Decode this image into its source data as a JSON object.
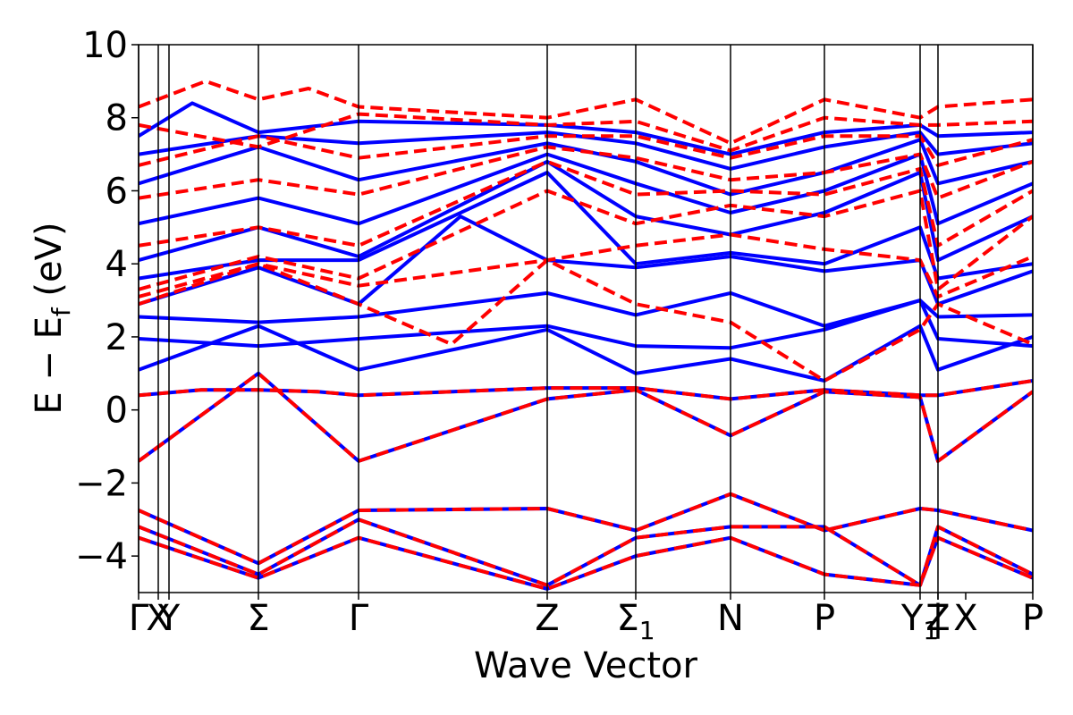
{
  "chart_data": {
    "type": "line",
    "title": "",
    "xlabel": "Wave Vector",
    "ylabel": "E − E_f (eV)",
    "ylabel_parts": {
      "main": "E − E",
      "sub": "f",
      "unit": " (eV)"
    },
    "ylim": [
      -5,
      10
    ],
    "xlim": [
      0,
      10
    ],
    "yticks": [
      -4,
      -2,
      0,
      2,
      4,
      6,
      8,
      10
    ],
    "ytick_labels": [
      "−4",
      "−2",
      "0",
      "2",
      "4",
      "6",
      "8",
      "10"
    ],
    "kpoints": [
      {
        "label": "Γ",
        "sub": "",
        "x": 0.0
      },
      {
        "label": "X",
        "sub": "",
        "x": 0.22
      },
      {
        "label": "Y",
        "sub": "",
        "x": 0.34
      },
      {
        "label": "Σ",
        "sub": "",
        "x": 1.34
      },
      {
        "label": "Γ",
        "sub": "",
        "x": 2.46
      },
      {
        "label": "Z",
        "sub": "",
        "x": 4.57
      },
      {
        "label": "Σ",
        "sub": "1",
        "x": 5.56
      },
      {
        "label": "N",
        "sub": "",
        "x": 6.62
      },
      {
        "label": "P",
        "sub": "",
        "x": 7.67
      },
      {
        "label": "Y",
        "sub": "1",
        "x": 8.74
      },
      {
        "label": "Z",
        "sub": "",
        "x": 8.94
      },
      {
        "label": "|",
        "sub": "",
        "x": 8.94
      },
      {
        "label": "X",
        "sub": "",
        "x": 9.25
      },
      {
        "label": "P",
        "sub": "",
        "x": 10.0
      }
    ],
    "vlines": [
      0.0,
      0.22,
      0.34,
      1.34,
      2.46,
      4.57,
      5.56,
      6.62,
      7.67,
      8.74,
      8.94,
      10.0
    ],
    "series": [
      {
        "color": "#0000ff",
        "style": "solid",
        "width": 4,
        "role": "band",
        "bands": [
          {
            "x": [
              0,
              1.34,
              2.46,
              4.57,
              5.56,
              6.62,
              7.67,
              8.74,
              8.94,
              10
            ],
            "y": [
              -1.4,
              1.0,
              -1.4,
              0.3,
              0.55,
              -0.7,
              0.5,
              0.35,
              -1.4,
              0.5
            ]
          },
          {
            "x": [
              0,
              0.7,
              1.34,
              2.0,
              2.46,
              4.57,
              5.56,
              6.62,
              7.67,
              8.74,
              8.94,
              10
            ],
            "y": [
              0.4,
              0.55,
              0.55,
              0.5,
              0.4,
              0.6,
              0.6,
              0.3,
              0.55,
              0.4,
              0.4,
              0.8
            ]
          },
          {
            "x": [
              0,
              1.34,
              2.46,
              4.57,
              5.56,
              6.62,
              7.67,
              8.74,
              8.94,
              10
            ],
            "y": [
              1.1,
              2.3,
              1.1,
              2.2,
              1.0,
              1.4,
              0.8,
              2.3,
              1.1,
              2.0
            ]
          },
          {
            "x": [
              0,
              1.34,
              2.46,
              4.57,
              5.56,
              6.62,
              7.67,
              8.74,
              8.94,
              10
            ],
            "y": [
              1.95,
              1.75,
              1.95,
              2.3,
              1.75,
              1.7,
              2.2,
              3.0,
              1.95,
              1.75
            ]
          },
          {
            "x": [
              0,
              1.34,
              2.46,
              4.57,
              5.56,
              6.62,
              7.67,
              8.74,
              8.94,
              10
            ],
            "y": [
              2.55,
              2.4,
              2.55,
              3.2,
              2.6,
              3.2,
              2.3,
              3.0,
              2.55,
              2.6
            ]
          },
          {
            "x": [
              0,
              1.34,
              2.46,
              3.6,
              4.57,
              5.56,
              6.62,
              7.67,
              8.74,
              8.94,
              10
            ],
            "y": [
              2.9,
              3.9,
              2.9,
              5.3,
              4.1,
              3.9,
              4.2,
              3.8,
              4.1,
              2.9,
              3.8
            ]
          },
          {
            "x": [
              0,
              1.34,
              2.46,
              4.57,
              5.56,
              6.62,
              7.67,
              8.74,
              8.94,
              10
            ],
            "y": [
              3.6,
              4.1,
              4.1,
              6.5,
              4.0,
              4.3,
              4.0,
              5.0,
              3.6,
              4.0
            ]
          },
          {
            "x": [
              0,
              1.34,
              2.46,
              4.57,
              5.56,
              6.62,
              7.67,
              8.74,
              8.94,
              10
            ],
            "y": [
              4.1,
              5.0,
              4.2,
              6.8,
              5.3,
              4.8,
              5.4,
              6.5,
              4.1,
              5.3
            ]
          },
          {
            "x": [
              0,
              1.34,
              2.46,
              4.57,
              5.56,
              6.62,
              7.67,
              8.74,
              8.94,
              10
            ],
            "y": [
              5.1,
              5.8,
              5.1,
              7.0,
              6.2,
              5.4,
              6.0,
              7.0,
              5.1,
              6.2
            ]
          },
          {
            "x": [
              0,
              1.34,
              2.46,
              4.57,
              5.56,
              6.62,
              7.67,
              8.74,
              8.94,
              10
            ],
            "y": [
              6.2,
              7.2,
              6.3,
              7.3,
              6.8,
              5.9,
              6.5,
              7.4,
              6.2,
              6.8
            ]
          },
          {
            "x": [
              0,
              1.34,
              2.46,
              4.57,
              5.56,
              6.62,
              7.67,
              8.74,
              8.94,
              10
            ],
            "y": [
              7.0,
              7.5,
              7.3,
              7.6,
              7.3,
              6.6,
              7.2,
              7.6,
              7.0,
              7.3
            ]
          },
          {
            "x": [
              0,
              0.6,
              1.34,
              2.46,
              4.57,
              5.56,
              6.62,
              7.67,
              8.74,
              8.94,
              10
            ],
            "y": [
              7.5,
              8.4,
              7.6,
              7.9,
              7.8,
              7.6,
              7.0,
              7.6,
              7.8,
              7.5,
              7.6
            ]
          },
          {
            "x": [
              0,
              1.34,
              2.46,
              4.57,
              5.56,
              6.62,
              7.67,
              8.74,
              8.94,
              10
            ],
            "y": [
              -2.75,
              -4.2,
              -2.75,
              -2.7,
              -3.3,
              -2.3,
              -3.3,
              -2.7,
              -2.75,
              -3.3
            ]
          },
          {
            "x": [
              0,
              1.34,
              2.46,
              4.57,
              5.56,
              6.62,
              7.67,
              8.74,
              8.94,
              10
            ],
            "y": [
              -3.2,
              -4.5,
              -3.0,
              -4.8,
              -3.5,
              -3.2,
              -3.2,
              -4.8,
              -3.2,
              -4.5
            ]
          },
          {
            "x": [
              0,
              1.34,
              2.46,
              4.57,
              5.56,
              6.62,
              7.67,
              8.74,
              8.94,
              10
            ],
            "y": [
              -3.5,
              -4.6,
              -3.5,
              -4.9,
              -4.0,
              -3.5,
              -4.5,
              -4.8,
              -3.5,
              -4.6
            ]
          }
        ]
      },
      {
        "color": "#ff0000",
        "style": "dashed",
        "width": 4,
        "role": "band",
        "bands": [
          {
            "x": [
              0,
              1.34,
              2.46,
              4.57,
              5.56,
              6.62,
              7.67,
              8.74,
              8.94,
              10
            ],
            "y": [
              -1.4,
              1.0,
              -1.4,
              0.3,
              0.55,
              -0.7,
              0.5,
              0.35,
              -1.4,
              0.5
            ]
          },
          {
            "x": [
              0,
              0.7,
              1.34,
              2.0,
              2.46,
              4.57,
              5.56,
              6.62,
              7.67,
              8.74,
              8.94,
              10
            ],
            "y": [
              0.4,
              0.55,
              0.55,
              0.5,
              0.4,
              0.6,
              0.6,
              0.3,
              0.55,
              0.4,
              0.4,
              0.8
            ]
          },
          {
            "x": [
              0,
              1.34,
              2.46,
              3.5,
              4.57,
              5.56,
              6.62,
              7.67,
              8.74,
              8.94,
              10
            ],
            "y": [
              2.9,
              4.0,
              2.9,
              1.8,
              4.1,
              2.9,
              2.4,
              0.8,
              2.2,
              2.9,
              1.8
            ]
          },
          {
            "x": [
              0,
              1.34,
              2.46,
              4.57,
              5.56,
              6.62,
              7.67,
              8.74,
              8.94,
              10
            ],
            "y": [
              3.1,
              4.0,
              3.4,
              4.1,
              4.5,
              4.8,
              4.4,
              4.1,
              3.1,
              4.2
            ]
          },
          {
            "x": [
              0,
              1.34,
              2.46,
              4.57,
              5.56,
              6.62,
              7.67,
              8.74,
              8.94,
              10
            ],
            "y": [
              3.3,
              4.2,
              3.6,
              6.0,
              5.1,
              5.6,
              5.3,
              6.0,
              3.3,
              5.3
            ]
          },
          {
            "x": [
              0,
              1.34,
              2.46,
              4.57,
              5.56,
              6.62,
              7.67,
              8.74,
              8.94,
              10
            ],
            "y": [
              4.5,
              5.0,
              4.5,
              6.8,
              5.9,
              6.0,
              5.9,
              6.6,
              4.5,
              6.0
            ]
          },
          {
            "x": [
              0,
              1.34,
              2.46,
              4.57,
              5.56,
              6.62,
              7.67,
              8.74,
              8.94,
              10
            ],
            "y": [
              5.8,
              6.3,
              5.9,
              7.2,
              6.9,
              6.3,
              6.5,
              7.0,
              5.8,
              6.8
            ]
          },
          {
            "x": [
              0,
              1.34,
              2.46,
              4.57,
              5.56,
              6.62,
              7.67,
              8.74,
              8.94,
              10
            ],
            "y": [
              6.7,
              7.5,
              6.9,
              7.5,
              7.5,
              6.9,
              7.5,
              7.5,
              6.7,
              7.4
            ]
          },
          {
            "x": [
              0,
              0.75,
              1.34,
              1.9,
              2.46,
              4.57,
              5.56,
              6.62,
              7.67,
              8.74,
              8.94,
              10
            ],
            "y": [
              8.3,
              9.0,
              8.5,
              8.8,
              8.3,
              8.0,
              8.5,
              7.3,
              8.5,
              8.0,
              8.3,
              8.5
            ]
          },
          {
            "x": [
              0,
              1.34,
              2.46,
              4.57,
              5.56,
              6.62,
              7.67,
              8.74,
              8.94,
              10
            ],
            "y": [
              7.8,
              7.2,
              8.1,
              7.8,
              7.9,
              7.1,
              8.0,
              7.8,
              7.8,
              7.9
            ]
          },
          {
            "x": [
              0,
              1.34,
              2.46,
              4.57,
              5.56,
              6.62,
              7.67,
              8.74,
              8.94,
              10
            ],
            "y": [
              -2.75,
              -4.2,
              -2.75,
              -2.7,
              -3.3,
              -2.3,
              -3.3,
              -2.7,
              -2.75,
              -3.3
            ]
          },
          {
            "x": [
              0,
              1.34,
              2.46,
              4.57,
              5.56,
              6.62,
              7.67,
              8.74,
              8.94,
              10
            ],
            "y": [
              -3.2,
              -4.5,
              -3.0,
              -4.8,
              -3.5,
              -3.2,
              -3.2,
              -4.8,
              -3.2,
              -4.5
            ]
          },
          {
            "x": [
              0,
              1.34,
              2.46,
              4.57,
              5.56,
              6.62,
              7.67,
              8.74,
              8.94,
              10
            ],
            "y": [
              -3.5,
              -4.6,
              -3.5,
              -4.9,
              -4.0,
              -3.5,
              -4.5,
              -4.8,
              -3.5,
              -4.6
            ]
          }
        ]
      }
    ]
  }
}
